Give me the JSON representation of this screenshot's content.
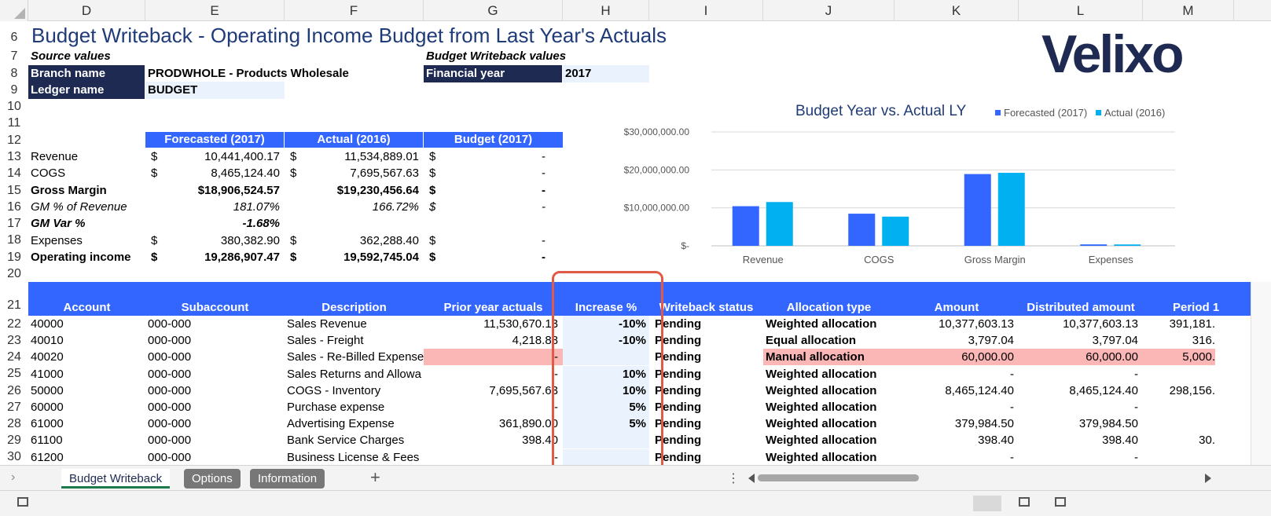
{
  "column_headers": [
    "D",
    "E",
    "F",
    "G",
    "H",
    "I",
    "J",
    "K",
    "L",
    "M"
  ],
  "row_numbers": [
    "6",
    "7",
    "8",
    "9",
    "10",
    "11",
    "12",
    "13",
    "14",
    "15",
    "16",
    "17",
    "18",
    "19",
    "20",
    "21",
    "22",
    "23",
    "24",
    "25",
    "26",
    "27",
    "28",
    "29",
    "30"
  ],
  "title": "Budget Writeback - Operating Income Budget from Last Year's Actuals",
  "logo": "Velixo",
  "source": {
    "label": "Source values",
    "branch_label": "Branch name",
    "branch_value": "PRODWHOLE - Products Wholesale",
    "ledger_label": "Ledger name",
    "ledger_value": "BUDGET"
  },
  "writeback": {
    "label": "Budget Writeback values",
    "year_label": "Financial year",
    "year_value": "2017"
  },
  "summary": {
    "headers": [
      "Forecasted (2017)",
      "Actual (2016)",
      "Budget (2017)"
    ],
    "rows": [
      {
        "label": "Revenue",
        "e_sym": "$",
        "e": "10,441,400.17",
        "f_sym": "$",
        "f": "11,534,889.01",
        "g_sym": "$",
        "g": "-",
        "bold": false,
        "italic": false
      },
      {
        "label": "COGS",
        "e_sym": "$",
        "e": "8,465,124.40",
        "f_sym": "$",
        "f": "7,695,567.63",
        "g_sym": "$",
        "g": "-",
        "bold": false,
        "italic": false
      },
      {
        "label": "Gross Margin",
        "e_sym": "",
        "e": "$18,906,524.57",
        "f_sym": "",
        "f": "$19,230,456.64",
        "g_sym": "$",
        "g": "-",
        "bold": true,
        "italic": false
      },
      {
        "label": "GM % of Revenue",
        "e_sym": "",
        "e": "181.07%",
        "f_sym": "",
        "f": "166.72%",
        "g_sym": "$",
        "g": "-",
        "bold": false,
        "italic": true
      },
      {
        "label": "GM Var %",
        "e_sym": "",
        "e": "-1.68%",
        "f_sym": "",
        "f": "",
        "g_sym": "",
        "g": "",
        "bold": true,
        "italic": true
      },
      {
        "label": "Expenses",
        "e_sym": "$",
        "e": "380,382.90",
        "f_sym": "$",
        "f": "362,288.40",
        "g_sym": "$",
        "g": "-",
        "bold": false,
        "italic": false
      },
      {
        "label": "Operating income",
        "e_sym": "$",
        "e": "19,286,907.47",
        "f_sym": "$",
        "f": "19,592,745.04",
        "g_sym": "$",
        "g": "-",
        "bold": true,
        "italic": false
      }
    ]
  },
  "chart_data": {
    "type": "bar",
    "title": "Budget Year vs. Actual LY",
    "categories": [
      "Revenue",
      "COGS",
      "Gross Margin",
      "Expenses"
    ],
    "series": [
      {
        "name": "Forecasted (2017)",
        "color": "#3366ff",
        "values": [
          10441400.17,
          8465124.4,
          18906524.57,
          380382.9
        ]
      },
      {
        "name": "Actual (2016)",
        "color": "#00b0f0",
        "values": [
          11534889.01,
          7695567.63,
          19230456.64,
          362288.4
        ]
      }
    ],
    "ylim": [
      0,
      30000000
    ],
    "yticks": [
      "$-",
      "$10,000,000.00",
      "$20,000,000.00",
      "$30,000,000.00"
    ],
    "legend": "top-right",
    "grid": true
  },
  "table": {
    "headers": [
      "Account",
      "Subaccount",
      "Description",
      "Prior year actuals",
      "Increase %",
      "Writeback status",
      "Allocation type",
      "Amount",
      "Distributed amount",
      "Period 1"
    ],
    "rows": [
      {
        "account": "40000",
        "sub": "000-000",
        "desc": "Sales Revenue",
        "prior": "11,530,670.13",
        "inc": "-10%",
        "status": "Pending",
        "alloc": "Weighted allocation",
        "amount": "10,377,603.13",
        "dist": "10,377,603.13",
        "p1": "391,181.",
        "pink": false
      },
      {
        "account": "40010",
        "sub": "000-000",
        "desc": "Sales - Freight",
        "prior": "4,218.88",
        "inc": "-10%",
        "status": "Pending",
        "alloc": "Equal allocation",
        "amount": "3,797.04",
        "dist": "3,797.04",
        "p1": "316.",
        "pink": false
      },
      {
        "account": "40020",
        "sub": "000-000",
        "desc": "Sales - Re-Billed Expense",
        "prior": "-",
        "inc": "",
        "status": "Pending",
        "alloc": "Manual allocation",
        "amount": "60,000.00",
        "dist": "60,000.00",
        "p1": "5,000.",
        "pink": true
      },
      {
        "account": "41000",
        "sub": "000-000",
        "desc": "Sales Returns and Allowa",
        "prior": "-",
        "inc": "10%",
        "status": "Pending",
        "alloc": "Weighted allocation",
        "amount": "-",
        "dist": "-",
        "p1": "",
        "pink": false
      },
      {
        "account": "50000",
        "sub": "000-000",
        "desc": "COGS - Inventory",
        "prior": "7,695,567.63",
        "inc": "10%",
        "status": "Pending",
        "alloc": "Weighted allocation",
        "amount": "8,465,124.40",
        "dist": "8,465,124.40",
        "p1": "298,156.",
        "pink": false
      },
      {
        "account": "60000",
        "sub": "000-000",
        "desc": "Purchase expense",
        "prior": "-",
        "inc": "5%",
        "status": "Pending",
        "alloc": "Weighted allocation",
        "amount": "-",
        "dist": "-",
        "p1": "",
        "pink": false
      },
      {
        "account": "61000",
        "sub": "000-000",
        "desc": "Advertising Expense",
        "prior": "361,890.00",
        "inc": "5%",
        "status": "Pending",
        "alloc": "Weighted allocation",
        "amount": "379,984.50",
        "dist": "379,984.50",
        "p1": "",
        "pink": false
      },
      {
        "account": "61100",
        "sub": "000-000",
        "desc": "Bank Service Charges",
        "prior": "398.40",
        "inc": "",
        "status": "Pending",
        "alloc": "Weighted allocation",
        "amount": "398.40",
        "dist": "398.40",
        "p1": "30.",
        "pink": false
      },
      {
        "account": "61200",
        "sub": "000-000",
        "desc": "Business License & Fees",
        "prior": "-",
        "inc": "",
        "status": "Pending",
        "alloc": "Weighted allocation",
        "amount": "-",
        "dist": "-",
        "p1": "",
        "pink": false
      }
    ]
  },
  "tabs": [
    "Budget Writeback",
    "Options",
    "Information"
  ],
  "add_sheet": "+"
}
